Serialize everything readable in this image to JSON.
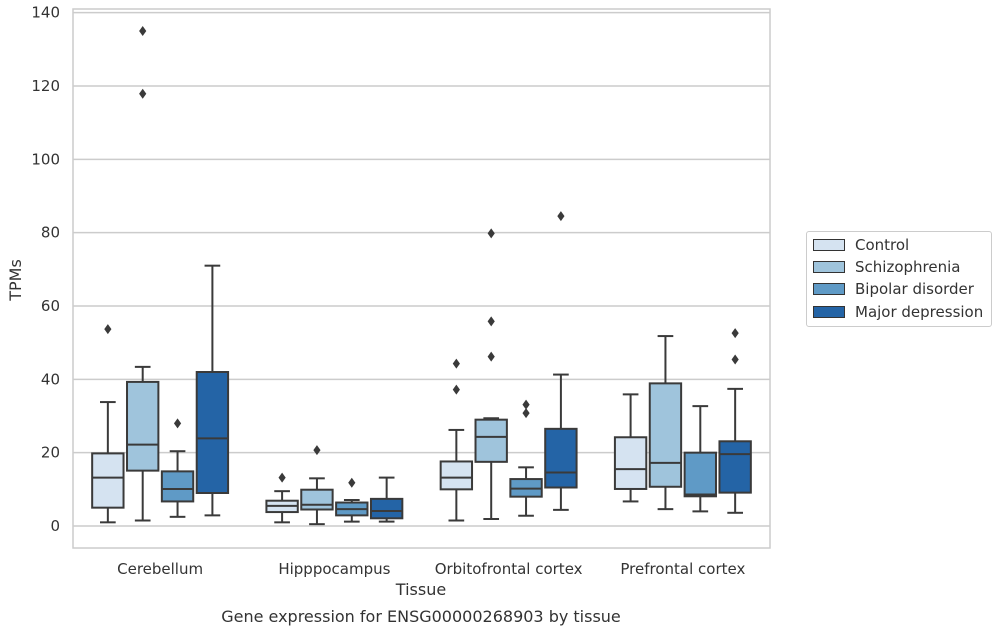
{
  "chart_data": {
    "type": "boxplot",
    "title": "Gene expression for ENSG00000268903 by tissue",
    "xlabel": "Tissue",
    "ylabel": "TPMs",
    "ylim": [
      -6,
      141
    ],
    "yticks": [
      0,
      20,
      40,
      60,
      80,
      100,
      120,
      140
    ],
    "grid": true,
    "legend_position": "right",
    "categories": [
      "Cerebellum",
      "Hipppocampus",
      "Orbitofrontal cortex",
      "Prefrontal cortex"
    ],
    "series": [
      {
        "name": "Control",
        "color": "#d5e3f1",
        "boxes": [
          {
            "whisker_low": 1.0,
            "q1": 5.0,
            "median": 13.2,
            "q3": 19.8,
            "whisker_high": 33.8,
            "outliers": [
              53.7
            ]
          },
          {
            "whisker_low": 1.0,
            "q1": 3.8,
            "median": 5.5,
            "q3": 6.9,
            "whisker_high": 9.5,
            "outliers": [
              13.2
            ]
          },
          {
            "whisker_low": 1.5,
            "q1": 10.0,
            "median": 13.2,
            "q3": 17.6,
            "whisker_high": 26.2,
            "outliers": [
              37.2,
              44.3
            ]
          },
          {
            "whisker_low": 6.7,
            "q1": 10.1,
            "median": 15.5,
            "q3": 24.2,
            "whisker_high": 35.9,
            "outliers": []
          }
        ]
      },
      {
        "name": "Schizophrenia",
        "color": "#9fc4dc",
        "boxes": [
          {
            "whisker_low": 1.5,
            "q1": 15.1,
            "median": 22.2,
            "q3": 39.3,
            "whisker_high": 43.4,
            "outliers": [
              117.9,
              135.0
            ]
          },
          {
            "whisker_low": 0.5,
            "q1": 4.5,
            "median": 5.8,
            "q3": 9.9,
            "whisker_high": 13.0,
            "outliers": [
              20.7
            ]
          },
          {
            "whisker_low": 1.9,
            "q1": 17.5,
            "median": 24.3,
            "q3": 29.0,
            "whisker_high": 29.4,
            "outliers": [
              46.2,
              55.8,
              79.8
            ]
          },
          {
            "whisker_low": 4.6,
            "q1": 10.7,
            "median": 17.2,
            "q3": 38.9,
            "whisker_high": 51.8,
            "outliers": []
          }
        ]
      },
      {
        "name": "Bipolar disorder",
        "color": "#5f9ac6",
        "boxes": [
          {
            "whisker_low": 2.5,
            "q1": 6.7,
            "median": 10.1,
            "q3": 14.9,
            "whisker_high": 20.4,
            "outliers": [
              28.0
            ]
          },
          {
            "whisker_low": 1.2,
            "q1": 2.9,
            "median": 4.6,
            "q3": 6.4,
            "whisker_high": 7.1,
            "outliers": [
              11.8
            ]
          },
          {
            "whisker_low": 2.8,
            "q1": 8.0,
            "median": 10.2,
            "q3": 12.8,
            "whisker_high": 16.0,
            "outliers": [
              30.8,
              33.1
            ]
          },
          {
            "whisker_low": 4.0,
            "q1": 8.1,
            "median": 8.6,
            "q3": 20.0,
            "whisker_high": 32.7,
            "outliers": []
          }
        ]
      },
      {
        "name": "Major depression",
        "color": "#2464a6",
        "boxes": [
          {
            "whisker_low": 2.9,
            "q1": 9.0,
            "median": 23.9,
            "q3": 42.0,
            "whisker_high": 71.0,
            "outliers": []
          },
          {
            "whisker_low": 1.2,
            "q1": 2.1,
            "median": 4.1,
            "q3": 7.4,
            "whisker_high": 13.2,
            "outliers": []
          },
          {
            "whisker_low": 4.4,
            "q1": 10.5,
            "median": 14.6,
            "q3": 26.5,
            "whisker_high": 41.3,
            "outliers": [
              84.5
            ]
          },
          {
            "whisker_low": 3.6,
            "q1": 9.1,
            "median": 19.6,
            "q3": 23.1,
            "whisker_high": 37.4,
            "outliers": [
              45.4,
              52.6
            ]
          }
        ]
      }
    ]
  }
}
